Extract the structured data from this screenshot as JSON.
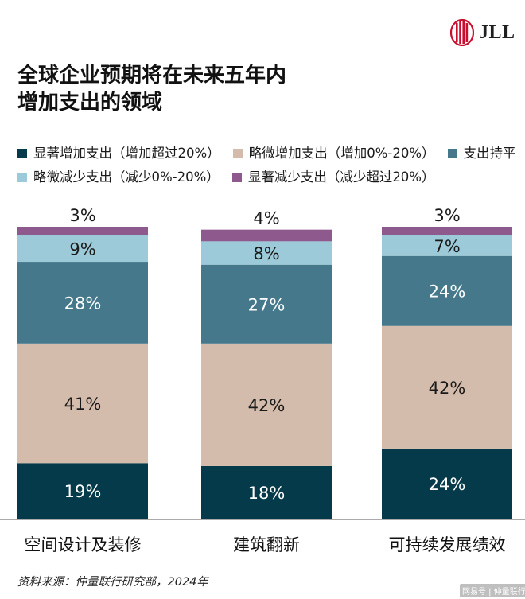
{
  "brand": {
    "logo_text": "JLL",
    "logo_color": "#c8102e"
  },
  "title_lines": [
    "全球企业预期将在未来五年内",
    "增加支出的领域"
  ],
  "legend_rows": [
    [
      {
        "label": "显著增加支出（增加超过20%）",
        "color": "#053a4a"
      },
      {
        "label": "略微增加支出（增加0%-20%）",
        "color": "#d3bcab"
      },
      {
        "label": "支出持平",
        "color": "#44788a"
      }
    ],
    [
      {
        "label": "略微减少支出（减少0%-20%）",
        "color": "#9ccad8"
      },
      {
        "label": "显著减少支出（减少超过20%）",
        "color": "#8e5a8e"
      }
    ]
  ],
  "chart_data": {
    "type": "bar",
    "stacked": true,
    "percent": true,
    "categories": [
      "空间设计及装修",
      "建筑翻新",
      "可持续发展绩效"
    ],
    "series": [
      {
        "name": "显著增加支出（增加超过20%）",
        "values": [
          19,
          18,
          24
        ],
        "labels": [
          "19%",
          "18%",
          "24%"
        ],
        "color": "#053a4a",
        "label_color": "#ffffff"
      },
      {
        "name": "略微增加支出（增加0%-20%）",
        "values": [
          41,
          42,
          42
        ],
        "labels": [
          "41%",
          "42%",
          "42%"
        ],
        "color": "#d3bcab",
        "label_color": "#1a1a1a"
      },
      {
        "name": "支出持平",
        "values": [
          28,
          27,
          24
        ],
        "labels": [
          "28%",
          "27%",
          "24%"
        ],
        "color": "#44788a",
        "label_color": "#ffffff"
      },
      {
        "name": "略微减少支出（减少0%-20%）",
        "values": [
          9,
          8,
          7
        ],
        "labels": [
          "9%",
          "8%",
          "7%"
        ],
        "color": "#9ccad8",
        "label_color": "#1a1a1a"
      },
      {
        "name": "显著减少支出（减少超过20%）",
        "values": [
          3,
          4,
          3
        ],
        "labels": [
          "3%",
          "4%",
          "3%"
        ],
        "color": "#8e5a8e",
        "label_color": "#1a1a1a"
      }
    ],
    "ylim": [
      0,
      100
    ],
    "grid": false,
    "legend_position": "top"
  },
  "source": "资料来源：仲量联行研究部，2024年",
  "watermark": "网易号 | 仲量联行"
}
